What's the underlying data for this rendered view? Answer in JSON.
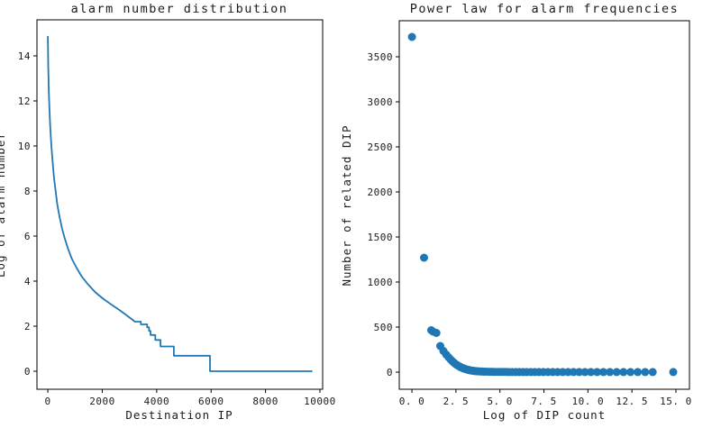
{
  "figure": {
    "background": "#ffffff",
    "accent_color": "#1f77b4",
    "text_color": "#1a1a1a",
    "spine_color": "#000000"
  },
  "chart_data": [
    {
      "type": "line",
      "title": "alarm number distribution",
      "xlabel": "Destination IP",
      "ylabel": "Log of alarm number",
      "grid": false,
      "legend": null,
      "xlim": [
        -400,
        10100
      ],
      "ylim": [
        -0.8,
        15.6
      ],
      "xticks": {
        "values": [
          0,
          2000,
          4000,
          6000,
          8000,
          10000
        ],
        "labels": [
          "0",
          "2000",
          "4000",
          "6000",
          "8000",
          "10000"
        ]
      },
      "yticks": {
        "values": [
          0,
          2,
          4,
          6,
          8,
          10,
          12,
          14
        ],
        "labels": [
          "0",
          "2",
          "4",
          "6",
          "8",
          "10",
          "12",
          "14"
        ]
      },
      "line_color": "#1f77b4",
      "line_width": 1.8,
      "points": [
        [
          0,
          14.85
        ],
        [
          15,
          13.6
        ],
        [
          35,
          12.5
        ],
        [
          60,
          11.6
        ],
        [
          90,
          10.8
        ],
        [
          130,
          10.0
        ],
        [
          175,
          9.3
        ],
        [
          225,
          8.6
        ],
        [
          285,
          8.0
        ],
        [
          350,
          7.4
        ],
        [
          430,
          6.85
        ],
        [
          520,
          6.35
        ],
        [
          620,
          5.9
        ],
        [
          740,
          5.45
        ],
        [
          880,
          5.0
        ],
        [
          1050,
          4.6
        ],
        [
          1250,
          4.2
        ],
        [
          1480,
          3.85
        ],
        [
          1750,
          3.5
        ],
        [
          2050,
          3.2
        ],
        [
          2350,
          2.95
        ],
        [
          2650,
          2.7
        ],
        [
          2900,
          2.48
        ],
        [
          3050,
          2.34
        ],
        [
          3200,
          2.2
        ],
        [
          3420,
          2.2
        ],
        [
          3420,
          2.08
        ],
        [
          3650,
          2.08
        ],
        [
          3650,
          1.95
        ],
        [
          3720,
          1.95
        ],
        [
          3720,
          1.79
        ],
        [
          3775,
          1.79
        ],
        [
          3775,
          1.61
        ],
        [
          3950,
          1.61
        ],
        [
          3950,
          1.39
        ],
        [
          4140,
          1.39
        ],
        [
          4140,
          1.1
        ],
        [
          4630,
          1.1
        ],
        [
          4630,
          0.69
        ],
        [
          5960,
          0.69
        ],
        [
          5960,
          0
        ],
        [
          9700,
          0
        ]
      ]
    },
    {
      "type": "scatter",
      "title": "Power law for alarm frequencies",
      "xlabel": "Log of DIP count",
      "ylabel": "Number of related DIP",
      "grid": false,
      "legend": null,
      "xlim": [
        -0.72,
        15.77
      ],
      "ylim": [
        -190,
        3900
      ],
      "xticks": {
        "values": [
          0,
          2.5,
          5,
          7.5,
          10,
          12.5,
          15
        ],
        "labels": [
          "0. 0",
          "2. 5",
          "5. 0",
          "7. 5",
          "10. 0",
          "12. 5",
          "15. 0"
        ]
      },
      "yticks": {
        "values": [
          0,
          500,
          1000,
          1500,
          2000,
          2500,
          3000,
          3500
        ],
        "labels": [
          "0",
          "500",
          "1000",
          "1500",
          "2000",
          "2500",
          "3000",
          "3500"
        ]
      },
      "marker_color": "#1f77b4",
      "marker_radius": 4.5,
      "points": [
        [
          0,
          3720
        ],
        [
          0.69,
          1270
        ],
        [
          1.1,
          465
        ],
        [
          1.2,
          450
        ],
        [
          1.39,
          435
        ],
        [
          1.61,
          290
        ],
        [
          1.79,
          235
        ],
        [
          1.95,
          195
        ],
        [
          2.08,
          165
        ],
        [
          2.2,
          140
        ],
        [
          2.3,
          120
        ],
        [
          2.4,
          103
        ],
        [
          2.48,
          90
        ],
        [
          2.56,
          79
        ],
        [
          2.64,
          70
        ],
        [
          2.71,
          62
        ],
        [
          2.77,
          55
        ],
        [
          2.83,
          50
        ],
        [
          2.89,
          45
        ],
        [
          2.94,
          41
        ],
        [
          3.0,
          37
        ],
        [
          3.09,
          31
        ],
        [
          3.18,
          26
        ],
        [
          3.26,
          22
        ],
        [
          3.33,
          19
        ],
        [
          3.4,
          17
        ],
        [
          3.47,
          15
        ],
        [
          3.53,
          13
        ],
        [
          3.58,
          12
        ],
        [
          3.64,
          11
        ],
        [
          3.69,
          10
        ],
        [
          3.78,
          9
        ],
        [
          3.87,
          8
        ],
        [
          3.95,
          7
        ],
        [
          4.03,
          6
        ],
        [
          4.11,
          5
        ],
        [
          4.25,
          5
        ],
        [
          4.38,
          4
        ],
        [
          4.5,
          4
        ],
        [
          4.61,
          3
        ],
        [
          4.72,
          3
        ],
        [
          4.87,
          2
        ],
        [
          5.01,
          2
        ],
        [
          5.19,
          2
        ],
        [
          5.35,
          2
        ],
        [
          5.52,
          1
        ],
        [
          5.7,
          1
        ],
        [
          5.9,
          1
        ],
        [
          6.1,
          1
        ],
        [
          6.31,
          1
        ],
        [
          6.52,
          1
        ],
        [
          6.75,
          1
        ],
        [
          6.98,
          1
        ],
        [
          7.22,
          1
        ],
        [
          7.47,
          1
        ],
        [
          7.73,
          1
        ],
        [
          8.0,
          1
        ],
        [
          8.28,
          1
        ],
        [
          8.57,
          1
        ],
        [
          8.87,
          1
        ],
        [
          9.18,
          1
        ],
        [
          9.5,
          1
        ],
        [
          9.83,
          1
        ],
        [
          10.17,
          1
        ],
        [
          10.52,
          1
        ],
        [
          10.88,
          1
        ],
        [
          11.25,
          1
        ],
        [
          11.63,
          1
        ],
        [
          12.02,
          1
        ],
        [
          12.42,
          1
        ],
        [
          12.83,
          1
        ],
        [
          13.25,
          1
        ],
        [
          13.68,
          1
        ],
        [
          14.85,
          1
        ]
      ]
    }
  ]
}
